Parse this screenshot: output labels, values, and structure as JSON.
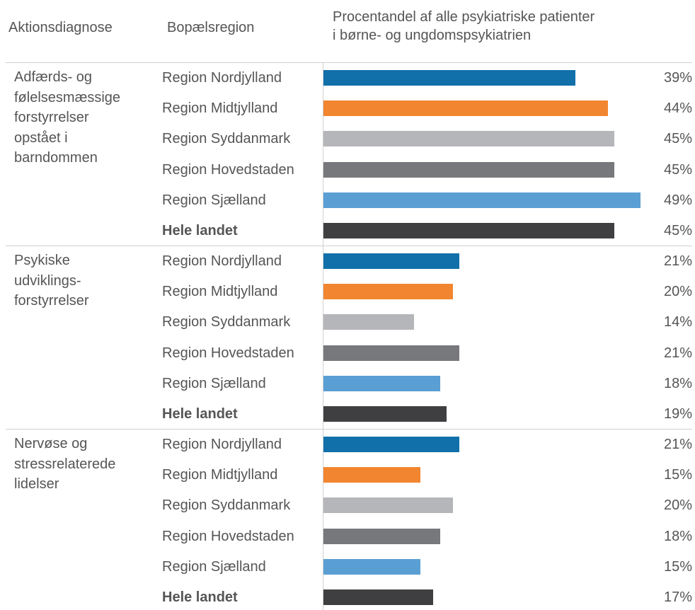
{
  "chart_data": {
    "type": "bar",
    "column_headers": {
      "diagnosis": "Aktionsdiagnose",
      "region": "Bopælsregion",
      "share": [
        "Procentandel af alle psykiatriske patienter",
        "i børne- og ungdomspsykiatrien"
      ]
    },
    "categories": [
      "Region Nordjylland",
      "Region Midtjylland",
      "Region Syddanmark",
      "Region Hovedstaden",
      "Region Sjælland",
      "Hele landet"
    ],
    "colors": [
      "#1170aa",
      "#f28630",
      "#b5b6ba",
      "#77787c",
      "#5a9fd4",
      "#3f3f41"
    ],
    "groups": [
      {
        "name": [
          "Adfærds- og",
          "følelsesmæssige",
          "forstyrrelser",
          "opstået i",
          "barndommen"
        ],
        "values": [
          39,
          44,
          45,
          45,
          49,
          45
        ],
        "value_labels": [
          "39%",
          "44%",
          "45%",
          "45%",
          "49%",
          "45%"
        ]
      },
      {
        "name": [
          "Psykiske",
          "udviklings-",
          "forstyrrelser"
        ],
        "values": [
          21,
          20,
          14,
          21,
          18,
          19
        ],
        "value_labels": [
          "21%",
          "20%",
          "14%",
          "21%",
          "18%",
          "19%"
        ]
      },
      {
        "name": [
          "Nervøse og",
          "stressrelaterede",
          "lidelser"
        ],
        "values": [
          21,
          15,
          20,
          18,
          15,
          17
        ],
        "value_labels": [
          "21%",
          "15%",
          "20%",
          "18%",
          "15%",
          "17%"
        ]
      }
    ]
  }
}
